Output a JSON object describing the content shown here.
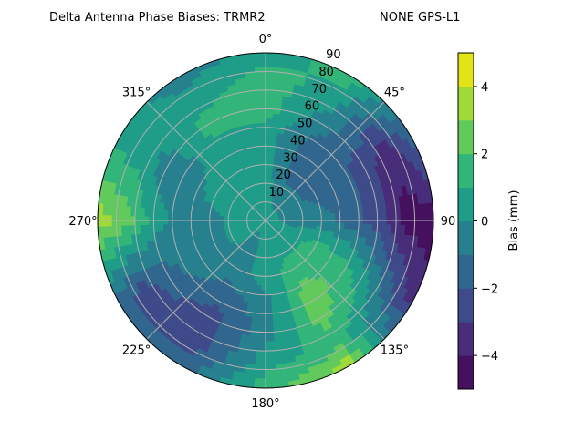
{
  "chart_data": {
    "type": "heatmap",
    "projection": "polar",
    "title_left": "Delta Antenna Phase Biases: TRMR2",
    "title_right": "NONE GPS-L1",
    "theta_zero": "north",
    "theta_direction": "clockwise",
    "azimuth_tick_labels": [
      "0°",
      "45°",
      "90",
      "135°",
      "180°",
      "225°",
      "270°",
      "315°"
    ],
    "radial_tick_labels": [
      "10",
      "20",
      "30",
      "40",
      "50",
      "60",
      "70",
      "80",
      "90"
    ],
    "radial_range": [
      0,
      90
    ],
    "grid": true,
    "azimuth": [
      0,
      30,
      60,
      90,
      120,
      150,
      180,
      210,
      240,
      270,
      300,
      330
    ],
    "zenith": [
      0,
      15,
      30,
      45,
      60,
      75,
      90
    ],
    "values": [
      [
        0.5,
        0.5,
        0.5,
        0.5,
        1.5,
        1.5,
        0.5
      ],
      [
        0.5,
        -0.5,
        -1.5,
        -1.5,
        -0.5,
        0.5,
        1.5
      ],
      [
        0.5,
        -0.5,
        -1.5,
        -1.5,
        -2.5,
        -3.5,
        -1.5
      ],
      [
        0.5,
        -0.5,
        -0.5,
        -1.5,
        -2.5,
        -4.5,
        -4.5
      ],
      [
        0.5,
        0.5,
        1.5,
        1.5,
        0.5,
        -1.5,
        -3.5
      ],
      [
        0.5,
        0.5,
        1.5,
        2.5,
        2.5,
        1.5,
        3.5
      ],
      [
        0.5,
        0.5,
        0.5,
        -0.5,
        -0.5,
        0.5,
        1.5
      ],
      [
        0.5,
        -0.5,
        -0.5,
        -1.5,
        -2.5,
        -2.5,
        -1.5
      ],
      [
        0.5,
        0.5,
        -0.5,
        -0.5,
        -1.5,
        -2.5,
        -1.5
      ],
      [
        0.5,
        0.5,
        -0.5,
        -0.5,
        0.5,
        2.5,
        3.5
      ],
      [
        0.5,
        0.5,
        0.5,
        -0.5,
        -0.5,
        0.5,
        0.5
      ],
      [
        0.5,
        0.5,
        0.5,
        0.5,
        1.5,
        0.5,
        -0.5
      ]
    ],
    "colorbar": {
      "label": "Bias (mm)",
      "levels": [
        -5,
        -4,
        -3,
        -2,
        -1,
        0,
        1,
        2,
        3,
        4,
        5
      ],
      "tick_labels": [
        "4",
        "2",
        "0",
        "−2",
        "−4"
      ],
      "tick_values": [
        4,
        2,
        0,
        -2,
        -4
      ],
      "colors": [
        "#45115f",
        "#482d7a",
        "#3e4a89",
        "#31668e",
        "#27808e",
        "#1f9d89",
        "#33b57a",
        "#62c95d",
        "#a0da39",
        "#e2e418"
      ]
    }
  }
}
